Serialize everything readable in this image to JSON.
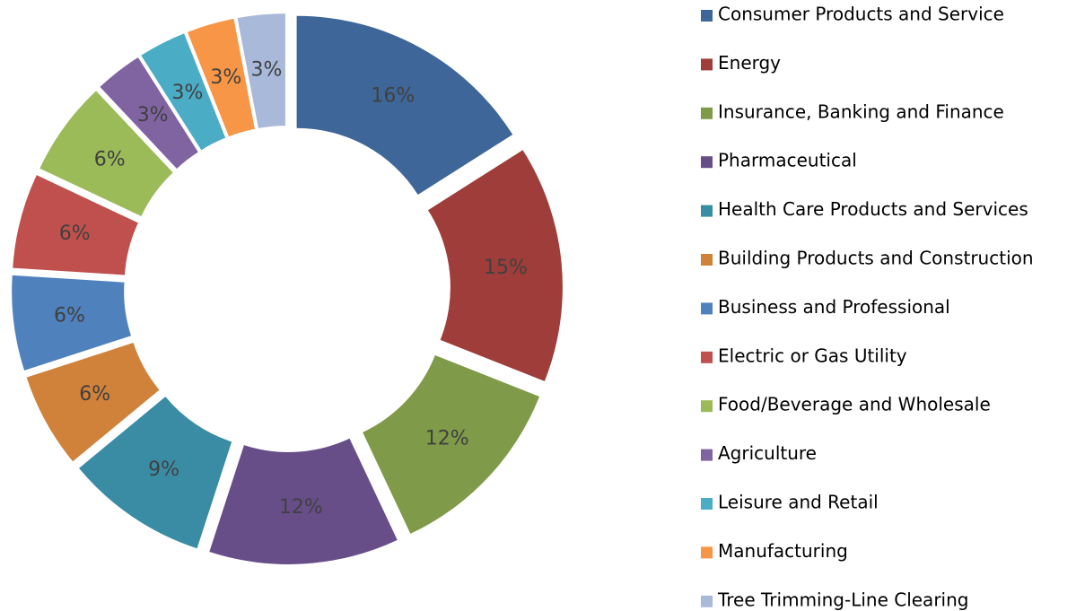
{
  "chart_data": {
    "type": "donut",
    "categories": [
      "Consumer Products and Service",
      "Energy",
      "Insurance, Banking and Finance",
      "Pharmaceutical",
      "Health Care Products and Services",
      "Building Products and Construction",
      "Business and Professional",
      "Electric or Gas Utility",
      "Food/Beverage and Wholesale",
      "Agriculture",
      "Leisure and Retail",
      "Manufacturing",
      "Tree Trimming-Line Clearing"
    ],
    "values": [
      16,
      15,
      12,
      12,
      9,
      6,
      6,
      6,
      6,
      3,
      3,
      3,
      3
    ],
    "value_labels": [
      "16%",
      "15%",
      "12%",
      "12%",
      "9%",
      "6%",
      "6%",
      "6%",
      "6%",
      "3%",
      "3%",
      "3%",
      "3%"
    ],
    "colors": [
      "#3E6699",
      "#9E3D3A",
      "#7F9A48",
      "#684E89",
      "#3A8CA5",
      "#D0813A",
      "#4F81BD",
      "#C0504D",
      "#9BBB59",
      "#8064A2",
      "#4BACC6",
      "#F79646",
      "#A9B9DA"
    ],
    "legend": "right"
  }
}
